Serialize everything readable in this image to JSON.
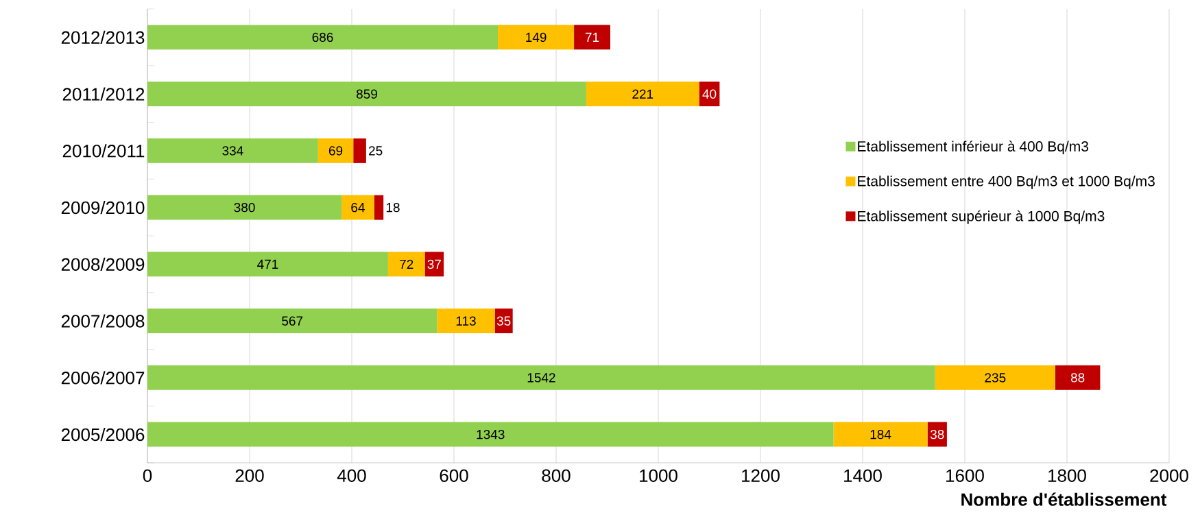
{
  "chart_data": {
    "type": "bar",
    "orientation": "horizontal",
    "stacked": true,
    "xlabel": "Nombre d'établissement",
    "categories": [
      "2012/2013",
      "2011/2012",
      "2010/2011",
      "2009/2010",
      "2008/2009",
      "2007/2008",
      "2006/2007",
      "2005/2006"
    ],
    "series": [
      {
        "name": "Etablissement inférieur à 400 Bq/m3",
        "color": "#92d050",
        "values": [
          686,
          859,
          334,
          380,
          471,
          567,
          1542,
          1343
        ]
      },
      {
        "name": "Etablissement entre 400 Bq/m3 et 1000 Bq/m3",
        "color": "#ffc000",
        "values": [
          149,
          221,
          69,
          64,
          72,
          113,
          235,
          184
        ]
      },
      {
        "name": "Etablissement supérieur à 1000 Bq/m3",
        "color": "#c00000",
        "values": [
          71,
          40,
          25,
          18,
          37,
          35,
          88,
          38
        ]
      }
    ],
    "xlim": [
      0,
      2000
    ],
    "xticks": [
      0,
      200,
      400,
      600,
      800,
      1000,
      1200,
      1400,
      1600,
      1800,
      2000
    ],
    "grid": "x",
    "legend": "right",
    "data_labels": true
  }
}
